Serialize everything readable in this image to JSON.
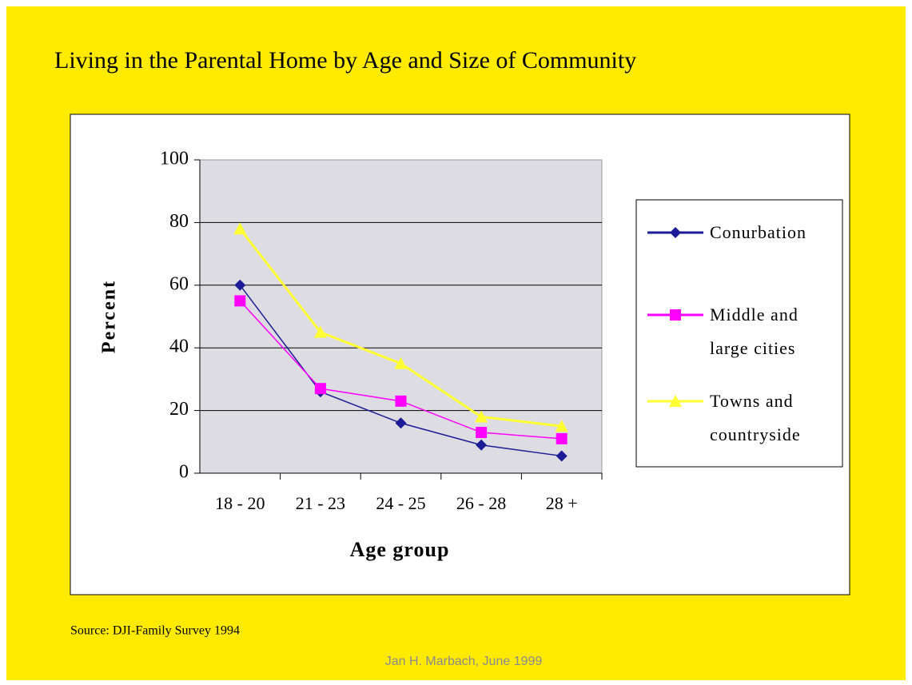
{
  "chart_data": {
    "type": "line",
    "title": "Living in the Parental Home by Age and Size of Community",
    "x_label": "Age group",
    "y_label": "Percent",
    "categories": [
      "18 - 20",
      "21 - 23",
      "24 - 25",
      "26 - 28",
      "28 +"
    ],
    "series": [
      {
        "name": "Conurbation",
        "color": "#1c1c96",
        "marker": "diamond",
        "values": [
          60,
          26,
          16,
          9,
          5.5
        ]
      },
      {
        "name": "Middle and large cities",
        "color": "#ff00ff",
        "marker": "square",
        "values": [
          55,
          27,
          23,
          13,
          11
        ]
      },
      {
        "name": "Towns and countryside",
        "color": "#ffff33",
        "marker": "triangle",
        "values": [
          78,
          45,
          35,
          18,
          15
        ]
      }
    ],
    "ylim": [
      0,
      100
    ],
    "yticks": [
      0,
      20,
      40,
      60,
      80,
      100
    ],
    "grid": true,
    "legend": "right",
    "source": "Source: DJI-Family Survey 1994",
    "author": "Jan H. Marbach, June 1999"
  }
}
